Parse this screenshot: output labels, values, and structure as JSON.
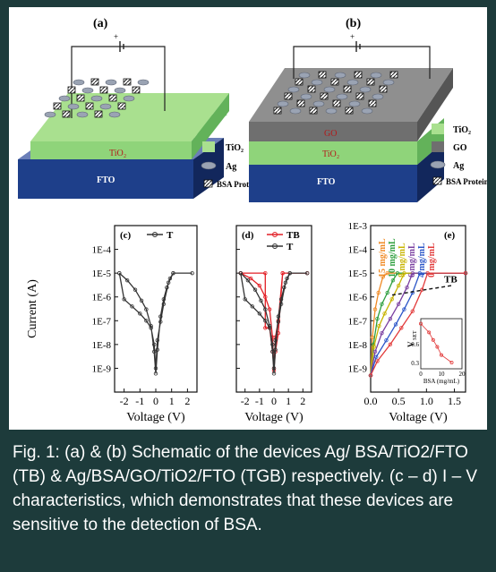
{
  "panels": {
    "a": {
      "label": "(a)",
      "layers": {
        "top": "TiO₂",
        "bottom": "FTO"
      },
      "legend": [
        {
          "label": "TiO₂",
          "swatch": "tio2"
        },
        {
          "label": "Ag",
          "swatch": "ag"
        },
        {
          "label": "BSA Protein",
          "swatch": "bsa"
        }
      ]
    },
    "b": {
      "label": "(b)",
      "layers": {
        "top": "GO",
        "middle": "TiO₂",
        "bottom": "FTO"
      },
      "legend": [
        {
          "label": "TiO₂",
          "swatch": "tio2"
        },
        {
          "label": "GO",
          "swatch": "go"
        },
        {
          "label": "Ag",
          "swatch": "ag"
        },
        {
          "label": "BSA Protein",
          "swatch": "bsa"
        }
      ]
    }
  },
  "chart_data": [
    {
      "id": "c",
      "type": "line",
      "panel_label": "(c)",
      "xlabel": "Voltage (V)",
      "ylabel": "Current (A)",
      "xlim": [
        -2.6,
        2.6
      ],
      "xticks": [
        -2,
        -1,
        0,
        1,
        2
      ],
      "ylim": [
        1e-10,
        0.001
      ],
      "yscale": "log",
      "yticks": [
        "1E-4",
        "1E-5",
        "1E-6",
        "1E-7",
        "1E-8",
        "1E-9"
      ],
      "series": [
        {
          "name": "T",
          "color": "#333333",
          "points": [
            [
              -2.3,
              1e-05
            ],
            [
              -1.8,
              5e-06
            ],
            [
              -1.3,
              2e-06
            ],
            [
              -0.9,
              7e-07
            ],
            [
              -0.6,
              3e-07
            ],
            [
              -0.3,
              6e-08
            ],
            [
              -0.1,
              5e-09
            ],
            [
              0,
              6e-10
            ],
            [
              0.1,
              6e-09
            ],
            [
              0.3,
              1.5e-07
            ],
            [
              0.5,
              8e-07
            ],
            [
              0.7,
              2.5e-06
            ],
            [
              0.9,
              6e-06
            ],
            [
              1.1,
              1e-05
            ],
            [
              2.3,
              1e-05
            ],
            [
              1.1,
              1e-05
            ],
            [
              0.8,
              4e-06
            ],
            [
              0.5,
              5e-07
            ],
            [
              0.3,
              9e-08
            ],
            [
              0.1,
              1.5e-08
            ],
            [
              0,
              1e-09
            ],
            [
              -0.1,
              1e-08
            ],
            [
              -0.3,
              5e-08
            ],
            [
              -0.6,
              1e-07
            ],
            [
              -1.0,
              2e-07
            ],
            [
              -1.5,
              4e-07
            ],
            [
              -2.0,
              8e-07
            ],
            [
              -2.3,
              1e-05
            ]
          ]
        }
      ]
    },
    {
      "id": "d",
      "type": "line",
      "panel_label": "(d)",
      "xlabel": "Voltage (V)",
      "xlim": [
        -2.6,
        2.6
      ],
      "xticks": [
        -2,
        -1,
        0,
        1,
        2
      ],
      "ylim": [
        1e-10,
        0.001
      ],
      "yscale": "log",
      "series": [
        {
          "name": "TB",
          "color": "#e21f26",
          "points": [
            [
              -2.3,
              1e-05
            ],
            [
              -1.6,
              6e-06
            ],
            [
              -1.0,
              3e-06
            ],
            [
              -0.6,
              1e-06
            ],
            [
              -0.3,
              3e-07
            ],
            [
              -0.1,
              2e-08
            ],
            [
              0,
              8e-10
            ],
            [
              0.1,
              2e-08
            ],
            [
              0.3,
              1e-07
            ],
            [
              0.6,
              1e-05
            ],
            [
              2.3,
              1e-05
            ],
            [
              0.6,
              1e-05
            ],
            [
              0.3,
              3e-08
            ],
            [
              0.1,
              5e-09
            ],
            [
              0,
              1e-09
            ],
            [
              -0.1,
              5e-09
            ],
            [
              -0.3,
              5e-08
            ],
            [
              -0.6,
              5e-08
            ],
            [
              -0.6,
              1e-05
            ],
            [
              -2.3,
              1e-05
            ]
          ]
        },
        {
          "name": "T",
          "color": "#333333",
          "points": [
            [
              -2.3,
              1e-05
            ],
            [
              -1.8,
              5e-06
            ],
            [
              -1.3,
              2e-06
            ],
            [
              -0.9,
              7e-07
            ],
            [
              -0.6,
              3e-07
            ],
            [
              -0.3,
              6e-08
            ],
            [
              -0.1,
              5e-09
            ],
            [
              0,
              6e-10
            ],
            [
              0.1,
              6e-09
            ],
            [
              0.3,
              1.5e-07
            ],
            [
              0.5,
              8e-07
            ],
            [
              0.7,
              2.5e-06
            ],
            [
              0.9,
              6e-06
            ],
            [
              1.1,
              1e-05
            ],
            [
              2.3,
              1e-05
            ],
            [
              1.1,
              1e-05
            ],
            [
              0.8,
              4e-06
            ],
            [
              0.5,
              5e-07
            ],
            [
              0.3,
              9e-08
            ],
            [
              0.1,
              1.5e-08
            ],
            [
              0,
              1e-09
            ],
            [
              -0.1,
              1e-08
            ],
            [
              -0.3,
              5e-08
            ],
            [
              -0.6,
              1e-07
            ],
            [
              -1.0,
              2e-07
            ],
            [
              -1.5,
              4e-07
            ],
            [
              -2.0,
              8e-07
            ],
            [
              -2.3,
              1e-05
            ]
          ]
        }
      ]
    },
    {
      "id": "e",
      "type": "line",
      "panel_label": "(e)",
      "xlabel": "Voltage (V)",
      "xlim": [
        0,
        1.7
      ],
      "xticks": [
        "0.0",
        "0.5",
        "1.0",
        "1.5"
      ],
      "ylim": [
        1e-10,
        0.001
      ],
      "yscale": "log",
      "yticks": [
        "1E-3",
        "1E-4",
        "1E-5",
        "1E-6",
        "1E-7",
        "1E-8",
        "1E-9"
      ],
      "annotation": "TB",
      "series": [
        {
          "name": "15 mg/mL",
          "color": "#f08a24",
          "points": [
            [
              0,
              5e-10
            ],
            [
              0.03,
              2e-08
            ],
            [
              0.08,
              3e-07
            ],
            [
              0.14,
              1.5e-06
            ],
            [
              0.22,
              7e-06
            ],
            [
              0.3,
              1e-05
            ],
            [
              1.7,
              1e-05
            ]
          ]
        },
        {
          "name": "10 mg/mL",
          "color": "#2e9e3e",
          "points": [
            [
              0,
              5e-10
            ],
            [
              0.05,
              1e-08
            ],
            [
              0.12,
              1.2e-07
            ],
            [
              0.2,
              5e-07
            ],
            [
              0.3,
              1.5e-06
            ],
            [
              0.4,
              5e-06
            ],
            [
              0.48,
              1e-05
            ],
            [
              1.7,
              1e-05
            ]
          ]
        },
        {
          "name": "8 mg/mL",
          "color": "#c8b400",
          "points": [
            [
              0,
              5e-10
            ],
            [
              0.06,
              8e-09
            ],
            [
              0.15,
              6e-08
            ],
            [
              0.25,
              2e-07
            ],
            [
              0.38,
              8e-07
            ],
            [
              0.5,
              3e-06
            ],
            [
              0.6,
              1e-05
            ],
            [
              1.7,
              1e-05
            ]
          ]
        },
        {
          "name": "6 mg/mL",
          "color": "#7a3fa0",
          "points": [
            [
              0,
              5e-10
            ],
            [
              0.08,
              5e-09
            ],
            [
              0.2,
              3e-08
            ],
            [
              0.35,
              1.2e-07
            ],
            [
              0.5,
              5e-07
            ],
            [
              0.65,
              2.5e-06
            ],
            [
              0.75,
              1e-05
            ],
            [
              1.7,
              1e-05
            ]
          ]
        },
        {
          "name": "4 mg/mL",
          "color": "#2b55c8",
          "points": [
            [
              0,
              5e-10
            ],
            [
              0.1,
              3e-09
            ],
            [
              0.28,
              1.5e-08
            ],
            [
              0.45,
              7e-08
            ],
            [
              0.6,
              3e-07
            ],
            [
              0.75,
              1.5e-06
            ],
            [
              0.88,
              1e-05
            ],
            [
              1.7,
              1e-05
            ]
          ]
        },
        {
          "name": "0 mg/mL",
          "color": "#e23b3b",
          "points": [
            [
              0,
              5e-10
            ],
            [
              0.12,
              2e-09
            ],
            [
              0.35,
              1e-08
            ],
            [
              0.55,
              5e-08
            ],
            [
              0.75,
              2.5e-07
            ],
            [
              0.92,
              2e-06
            ],
            [
              1.02,
              1e-05
            ],
            [
              1.7,
              1e-05
            ]
          ]
        }
      ],
      "inset": {
        "type": "scatter",
        "xlabel": "BSA (mg/mL)",
        "ylabel": "V",
        "ylabel_sub": "SET",
        "xticks": [
          "0",
          "10",
          "20"
        ],
        "yticks": [
          "0.6",
          "0.3"
        ],
        "xlim": [
          0,
          20
        ],
        "ylim": [
          0.2,
          1.0
        ],
        "color": "#e23b3b",
        "x": [
          0,
          4,
          6,
          8,
          10,
          15
        ],
        "y": [
          0.92,
          0.78,
          0.66,
          0.55,
          0.42,
          0.3
        ]
      }
    }
  ],
  "caption": "Fig. 1: (a) & (b) Schematic of the devices Ag/ BSA/TiO2/FTO (TB) & Ag/BSA/GO/TiO2/FTO (TGB) respectively. (c – d) I – V characteristics, which demonstrates that these devices are sensitive to the detection of BSA."
}
